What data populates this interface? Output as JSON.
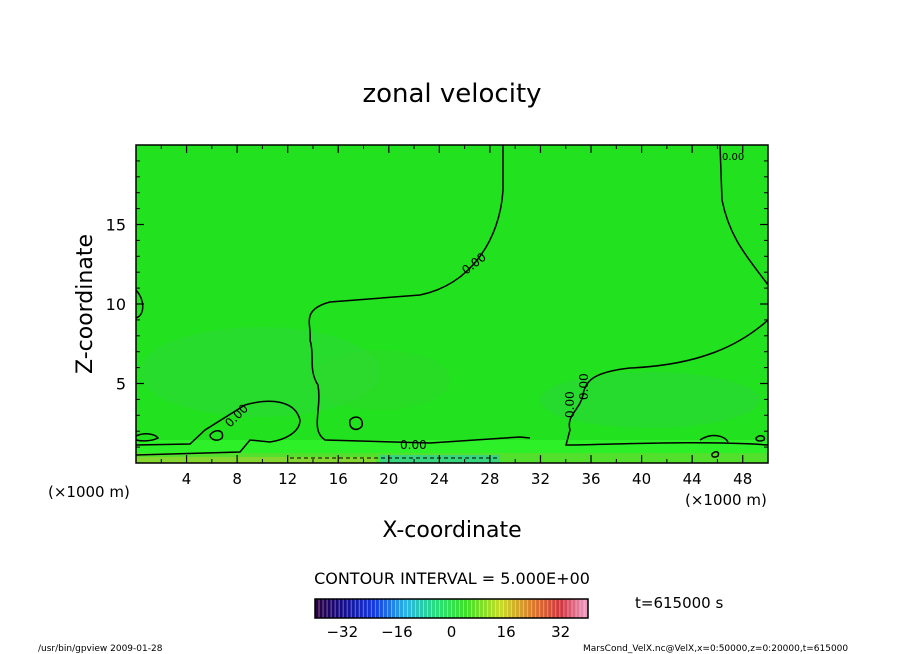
{
  "chart_data": {
    "type": "heatmap",
    "title": "zonal velocity",
    "xlabel": "X-coordinate",
    "ylabel": "Z-coordinate",
    "x_unit_note": "(×1000 m)",
    "y_unit_note": "(×1000 m)",
    "xlim": [
      0,
      50
    ],
    "ylim": [
      0,
      20
    ],
    "x_ticks": [
      4,
      8,
      12,
      16,
      20,
      24,
      28,
      32,
      36,
      40,
      44,
      48
    ],
    "y_ticks": [
      5,
      10,
      15
    ],
    "contour_interval_label": "CONTOUR INTERVAL = 5.000E+00",
    "contour_labels": [
      "0.00",
      "0.00",
      "0.00",
      "0.00",
      "0.00",
      "0.00"
    ],
    "colorbar_ticks": [
      -32,
      -16,
      0,
      16,
      32
    ],
    "colorbar_range": [
      -40,
      40
    ],
    "time_label": "t=615000 s",
    "footer_left": "/usr/bin/gpview  2009-01-28",
    "footer_right": "MarsCond_VelX.nc@VelX,x=0:50000,z=0:20000,t=615000"
  },
  "colors": {
    "field_background": "#22e11e",
    "field_bright": "#2ef028",
    "field_dark": "#2fd243",
    "contour": "#000000"
  }
}
